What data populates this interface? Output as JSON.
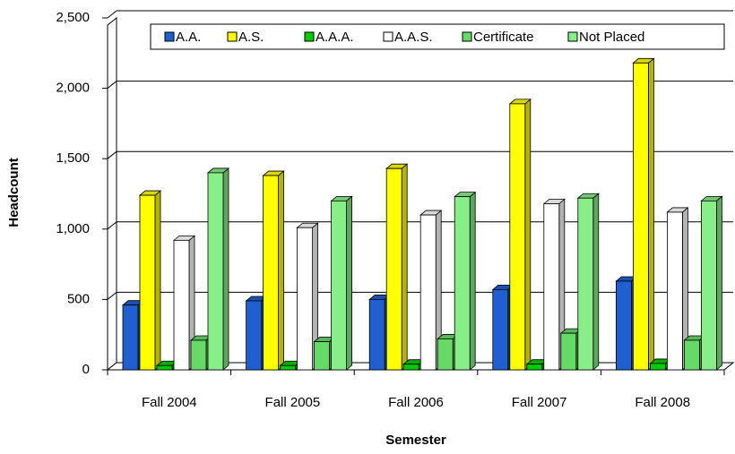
{
  "chart_data": {
    "type": "bar3d",
    "x_label": "Semester",
    "y_label": "Headcount",
    "categories": [
      "Fall 2004",
      "Fall 2005",
      "Fall 2006",
      "Fall 2007",
      "Fall 2008"
    ],
    "series": [
      {
        "name": "A.A.",
        "color": "#1f5fd0",
        "values": [
          460,
          490,
          500,
          570,
          630
        ]
      },
      {
        "name": "A.S.",
        "color": "#ffff00",
        "values": [
          1240,
          1380,
          1430,
          1890,
          2180
        ]
      },
      {
        "name": "A.A.A.",
        "color": "#00cc00",
        "values": [
          30,
          30,
          40,
          40,
          45
        ]
      },
      {
        "name": "A.A.S.",
        "color": "#ffffff",
        "values": [
          920,
          1010,
          1100,
          1180,
          1120
        ]
      },
      {
        "name": "Certificate",
        "color": "#66d966",
        "values": [
          210,
          200,
          220,
          260,
          210
        ]
      },
      {
        "name": "Not Placed",
        "color": "#88ee88",
        "values": [
          1400,
          1200,
          1230,
          1220,
          1200
        ]
      }
    ],
    "ylim": [
      0,
      2500
    ],
    "yticks": [
      0,
      500,
      {
        "value": 1000,
        "label": "1,000"
      },
      {
        "value": 1500,
        "label": "1,500"
      },
      {
        "value": 2000,
        "label": "2,000"
      },
      {
        "value": 2500,
        "label": "2,500"
      }
    ],
    "grid": true,
    "legend": "top"
  }
}
